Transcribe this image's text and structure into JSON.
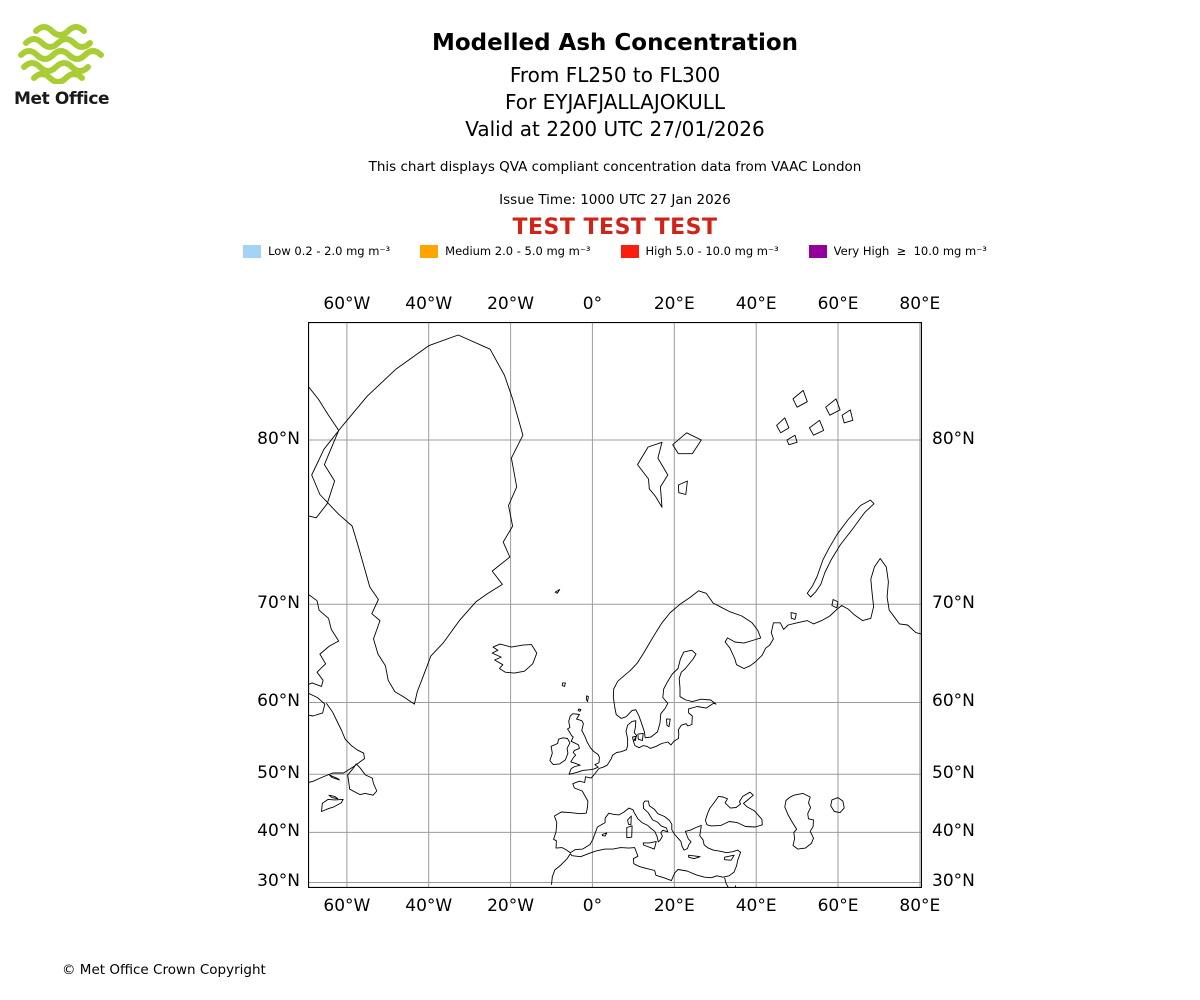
{
  "logo": {
    "brand": "Met Office",
    "wave_color": "#a9ce35"
  },
  "header": {
    "title": "Modelled Ash Concentration",
    "subtitle_lines": [
      "From FL250 to FL300",
      "For EYJAFJALLAJOKULL",
      "Valid at 2200 UTC 27/01/2026"
    ],
    "compliance_note": "This chart displays QVA compliant concentration data from VAAC London",
    "issue_time": "Issue Time: 1000 UTC 27 Jan 2026",
    "test_banner": {
      "text": "TEST TEST TEST",
      "color": "#cf2419"
    }
  },
  "legend": {
    "items": [
      {
        "level": "Low",
        "label": "Low 0.2 - 2.0 mg m⁻³",
        "color": "#a3d4f5"
      },
      {
        "level": "Medium",
        "label": "Medium 2.0 - 5.0 mg m⁻³",
        "color": "#ffa400"
      },
      {
        "level": "High",
        "label": "High 5.0 - 10.0 mg m⁻³",
        "color": "#fb1e0e"
      },
      {
        "level": "Very High",
        "label": "Very High  ≥  10.0 mg m⁻³",
        "color": "#93009b"
      }
    ]
  },
  "map": {
    "projection": "mercator",
    "region": "North Atlantic and Europe",
    "grid_color": "#9b9b9b",
    "coast_color": "#000000",
    "lon_ticks": [
      {
        "label": "60°W",
        "deg": -60
      },
      {
        "label": "40°W",
        "deg": -40
      },
      {
        "label": "20°W",
        "deg": -20
      },
      {
        "label": "0°",
        "deg": 0
      },
      {
        "label": "20°E",
        "deg": 20
      },
      {
        "label": "40°E",
        "deg": 40
      },
      {
        "label": "60°E",
        "deg": 60
      },
      {
        "label": "80°E",
        "deg": 80
      }
    ],
    "lat_ticks": [
      {
        "label": "80°N",
        "deg": 80
      },
      {
        "label": "70°N",
        "deg": 70
      },
      {
        "label": "60°N",
        "deg": 60
      },
      {
        "label": "50°N",
        "deg": 50
      },
      {
        "label": "40°N",
        "deg": 40
      },
      {
        "label": "30°N",
        "deg": 30
      }
    ]
  },
  "footer": {
    "copyright": "© Met Office Crown Copyright"
  }
}
